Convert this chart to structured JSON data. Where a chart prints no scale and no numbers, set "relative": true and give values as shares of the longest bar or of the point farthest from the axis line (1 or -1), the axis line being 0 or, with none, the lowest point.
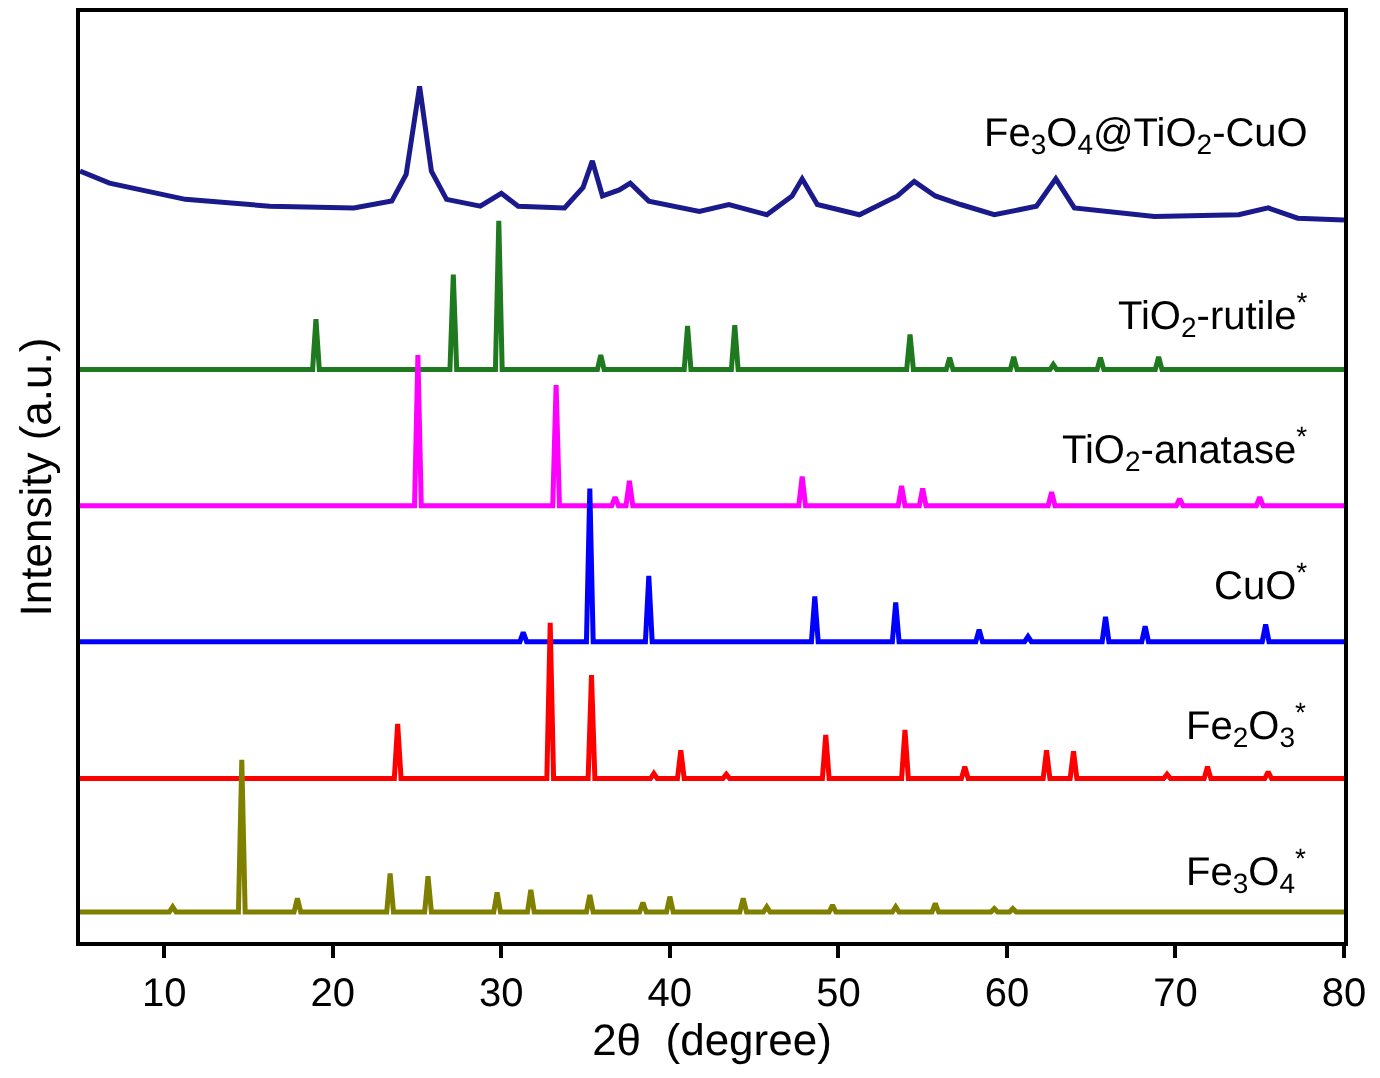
{
  "chart_data": {
    "type": "line",
    "relative": true,
    "xlabel": "2θ  (degree)",
    "ylabel": "Intensity (a.u.)",
    "xlim": [
      5,
      80
    ],
    "xticks": [
      10,
      20,
      30,
      40,
      50,
      60,
      70,
      80
    ],
    "tick_labels": "x",
    "legend": false,
    "marker": "none",
    "line_style": "solid",
    "series": [
      {
        "name": "Fe$_{3}$O$_{4}$@TiO$_{2}$-CuO",
        "color": "#1a1a8c",
        "x": [
          5,
          6.75,
          11.25,
          16.25,
          21.25,
          23.5,
          24.35,
          25.15,
          25.85,
          26.75,
          28.75,
          30,
          31,
          33.75,
          34.85,
          35.4,
          36,
          37,
          37.65,
          38.75,
          41.75,
          43.5,
          45.75,
          47.25,
          47.85,
          48.75,
          51.25,
          53.5,
          54.5,
          55.75,
          57.25,
          59.25,
          61.75,
          62.9,
          64,
          68.75,
          73.75,
          75.5,
          77.25,
          80
        ],
        "values": [
          0.901,
          0.887,
          0.868,
          0.86,
          0.858,
          0.866,
          0.897,
          1.0,
          0.901,
          0.868,
          0.86,
          0.875,
          0.86,
          0.858,
          0.882,
          0.913,
          0.872,
          0.879,
          0.887,
          0.866,
          0.854,
          0.862,
          0.85,
          0.872,
          0.892,
          0.862,
          0.85,
          0.872,
          0.889,
          0.872,
          0.862,
          0.85,
          0.86,
          0.892,
          0.858,
          0.848,
          0.85,
          0.858,
          0.846,
          0.844
        ]
      },
      {
        "name": "TiO$_{2}$-rutile$^{*}$",
        "color": "#1f7a1f",
        "x": [
          5,
          18.8,
          19.0,
          19.2,
          26.95,
          27.15,
          27.35,
          29.65,
          29.85,
          30.05,
          35.7,
          35.9,
          36.1,
          40.85,
          41.05,
          41.25,
          43.65,
          43.85,
          44.05,
          54.05,
          54.25,
          54.45,
          56.4,
          56.6,
          56.8,
          60.2,
          60.4,
          60.6,
          62.55,
          62.75,
          62.95,
          65.35,
          65.55,
          65.75,
          68.8,
          69.0,
          69.2,
          80
        ],
        "values": [
          0.669,
          0.669,
          0.728,
          0.669,
          0.669,
          0.78,
          0.669,
          0.669,
          0.843,
          0.669,
          0.669,
          0.686,
          0.669,
          0.669,
          0.72,
          0.669,
          0.669,
          0.721,
          0.669,
          0.669,
          0.71,
          0.669,
          0.669,
          0.683,
          0.669,
          0.669,
          0.684,
          0.669,
          0.669,
          0.675,
          0.669,
          0.669,
          0.683,
          0.669,
          0.669,
          0.684,
          0.669,
          0.669
        ]
      },
      {
        "name": "TiO$_{2}$-anatase$^{*}$",
        "color": "#ff00ff",
        "x": [
          5,
          24.85,
          25.05,
          25.25,
          33.05,
          33.25,
          33.45,
          36.55,
          36.75,
          36.95,
          37.4,
          37.6,
          37.8,
          47.65,
          47.85,
          48.05,
          53.55,
          53.75,
          53.95,
          54.8,
          55.0,
          55.2,
          62.45,
          62.65,
          62.85,
          70.05,
          70.25,
          70.45,
          74.8,
          75.0,
          75.2,
          80
        ],
        "values": [
          0.51,
          0.51,
          0.686,
          0.51,
          0.51,
          0.651,
          0.51,
          0.51,
          0.52,
          0.51,
          0.51,
          0.539,
          0.51,
          0.51,
          0.544,
          0.51,
          0.51,
          0.533,
          0.51,
          0.51,
          0.53,
          0.51,
          0.51,
          0.526,
          0.51,
          0.51,
          0.518,
          0.51,
          0.51,
          0.52,
          0.51,
          0.51
        ]
      },
      {
        "name": "CuO$^{*}$",
        "color": "#0000ff",
        "x": [
          5,
          31.1,
          31.3,
          31.5,
          35.05,
          35.25,
          35.45,
          38.55,
          38.75,
          38.95,
          48.4,
          48.6,
          48.8,
          53.2,
          53.4,
          53.6,
          58.15,
          58.35,
          58.55,
          61.05,
          61.25,
          61.45,
          65.65,
          65.85,
          66.05,
          68.0,
          68.2,
          68.4,
          75.15,
          75.35,
          75.55,
          80
        ],
        "values": [
          0.351,
          0.351,
          0.362,
          0.351,
          0.351,
          0.53,
          0.351,
          0.351,
          0.428,
          0.351,
          0.351,
          0.404,
          0.351,
          0.351,
          0.397,
          0.351,
          0.351,
          0.365,
          0.351,
          0.351,
          0.357,
          0.351,
          0.351,
          0.38,
          0.351,
          0.351,
          0.369,
          0.351,
          0.351,
          0.371,
          0.351,
          0.351
        ]
      },
      {
        "name": "Fe$_{2}$O$_{3}$$^{*}$",
        "color": "#ff0000",
        "x": [
          5,
          23.65,
          23.85,
          24.05,
          32.7,
          32.9,
          33.1,
          35.15,
          35.35,
          35.55,
          38.85,
          39.05,
          39.25,
          40.45,
          40.65,
          40.85,
          43.15,
          43.35,
          43.55,
          49.05,
          49.25,
          49.45,
          53.75,
          53.95,
          54.15,
          57.3,
          57.5,
          57.7,
          62.15,
          62.35,
          62.55,
          63.75,
          63.95,
          64.15,
          69.3,
          69.5,
          69.7,
          71.7,
          71.9,
          72.1,
          75.3,
          75.5,
          75.7,
          80
        ],
        "values": [
          0.191,
          0.191,
          0.255,
          0.191,
          0.191,
          0.373,
          0.191,
          0.191,
          0.312,
          0.191,
          0.191,
          0.197,
          0.191,
          0.191,
          0.224,
          0.191,
          0.191,
          0.196,
          0.191,
          0.191,
          0.242,
          0.191,
          0.191,
          0.248,
          0.191,
          0.191,
          0.205,
          0.191,
          0.191,
          0.224,
          0.191,
          0.191,
          0.223,
          0.191,
          0.191,
          0.196,
          0.191,
          0.191,
          0.205,
          0.191,
          0.191,
          0.199,
          0.191,
          0.191
        ]
      },
      {
        "name": "Fe$_{3}$O$_{4}$$^{*}$",
        "color": "#808000",
        "x": [
          5,
          10.3,
          10.5,
          10.7,
          14.4,
          14.6,
          14.8,
          17.7,
          17.9,
          18.1,
          23.2,
          23.4,
          23.6,
          25.45,
          25.65,
          25.85,
          29.55,
          29.75,
          29.95,
          31.55,
          31.75,
          31.95,
          35.05,
          35.25,
          35.45,
          38.2,
          38.4,
          38.6,
          39.8,
          40.0,
          40.2,
          44.15,
          44.35,
          44.55,
          45.55,
          45.75,
          45.95,
          49.45,
          49.65,
          49.85,
          53.2,
          53.4,
          53.6,
          55.55,
          55.75,
          55.95,
          59.05,
          59.25,
          59.45,
          60.15,
          60.35,
          60.55,
          80
        ],
        "values": [
          0.035,
          0.035,
          0.041,
          0.035,
          0.035,
          0.213,
          0.035,
          0.035,
          0.051,
          0.035,
          0.035,
          0.08,
          0.035,
          0.035,
          0.077,
          0.035,
          0.035,
          0.058,
          0.035,
          0.035,
          0.061,
          0.035,
          0.035,
          0.055,
          0.035,
          0.035,
          0.046,
          0.035,
          0.035,
          0.053,
          0.035,
          0.035,
          0.051,
          0.035,
          0.035,
          0.041,
          0.035,
          0.035,
          0.043,
          0.035,
          0.035,
          0.041,
          0.035,
          0.035,
          0.045,
          0.035,
          0.035,
          0.039,
          0.035,
          0.035,
          0.039,
          0.035,
          0.035
        ]
      }
    ]
  }
}
